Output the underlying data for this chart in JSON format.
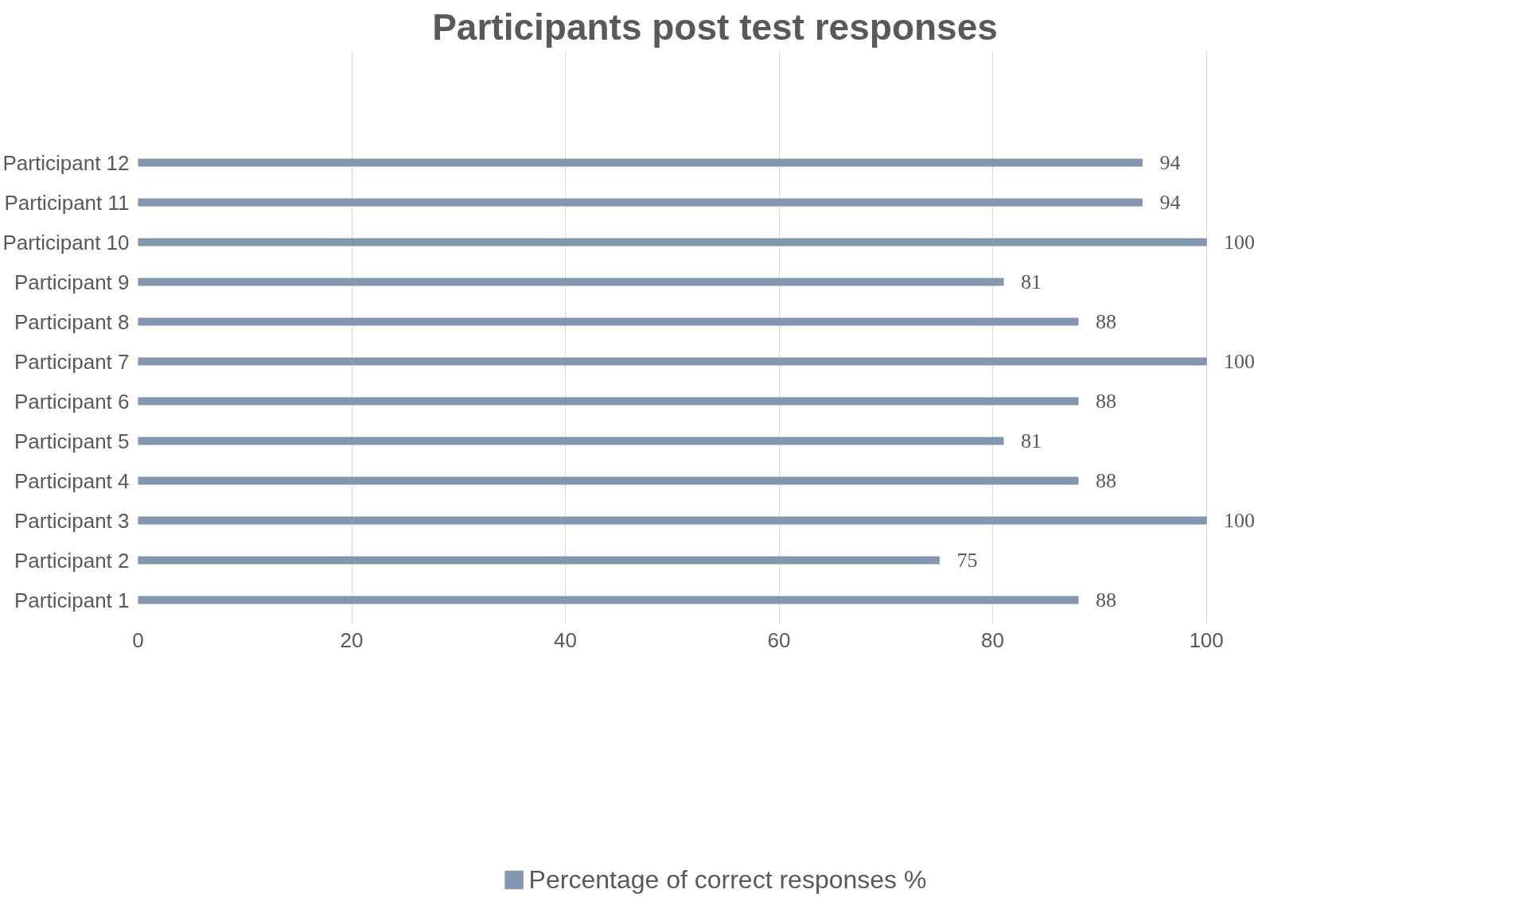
{
  "chart_data": {
    "type": "bar",
    "orientation": "horizontal",
    "title": "Participants post test responses",
    "categories": [
      "Participant 12",
      "Participant 11",
      "Participant 10",
      "Participant 9",
      "Participant 8",
      "Participant 7",
      "Participant 6",
      "Participant 5",
      "Participant 4",
      "Participant 3",
      "Participant 2",
      "Participant 1"
    ],
    "series": [
      {
        "name": "Percentage of correct responses %",
        "color": "#8497b0",
        "values": [
          94,
          94,
          100,
          81,
          88,
          100,
          88,
          81,
          88,
          100,
          75,
          88
        ]
      }
    ],
    "xlim": [
      0,
      100
    ],
    "xticks": [
      0,
      20,
      40,
      60,
      80,
      100
    ],
    "grid": "x",
    "legend": "bottom",
    "data_labels": true
  }
}
